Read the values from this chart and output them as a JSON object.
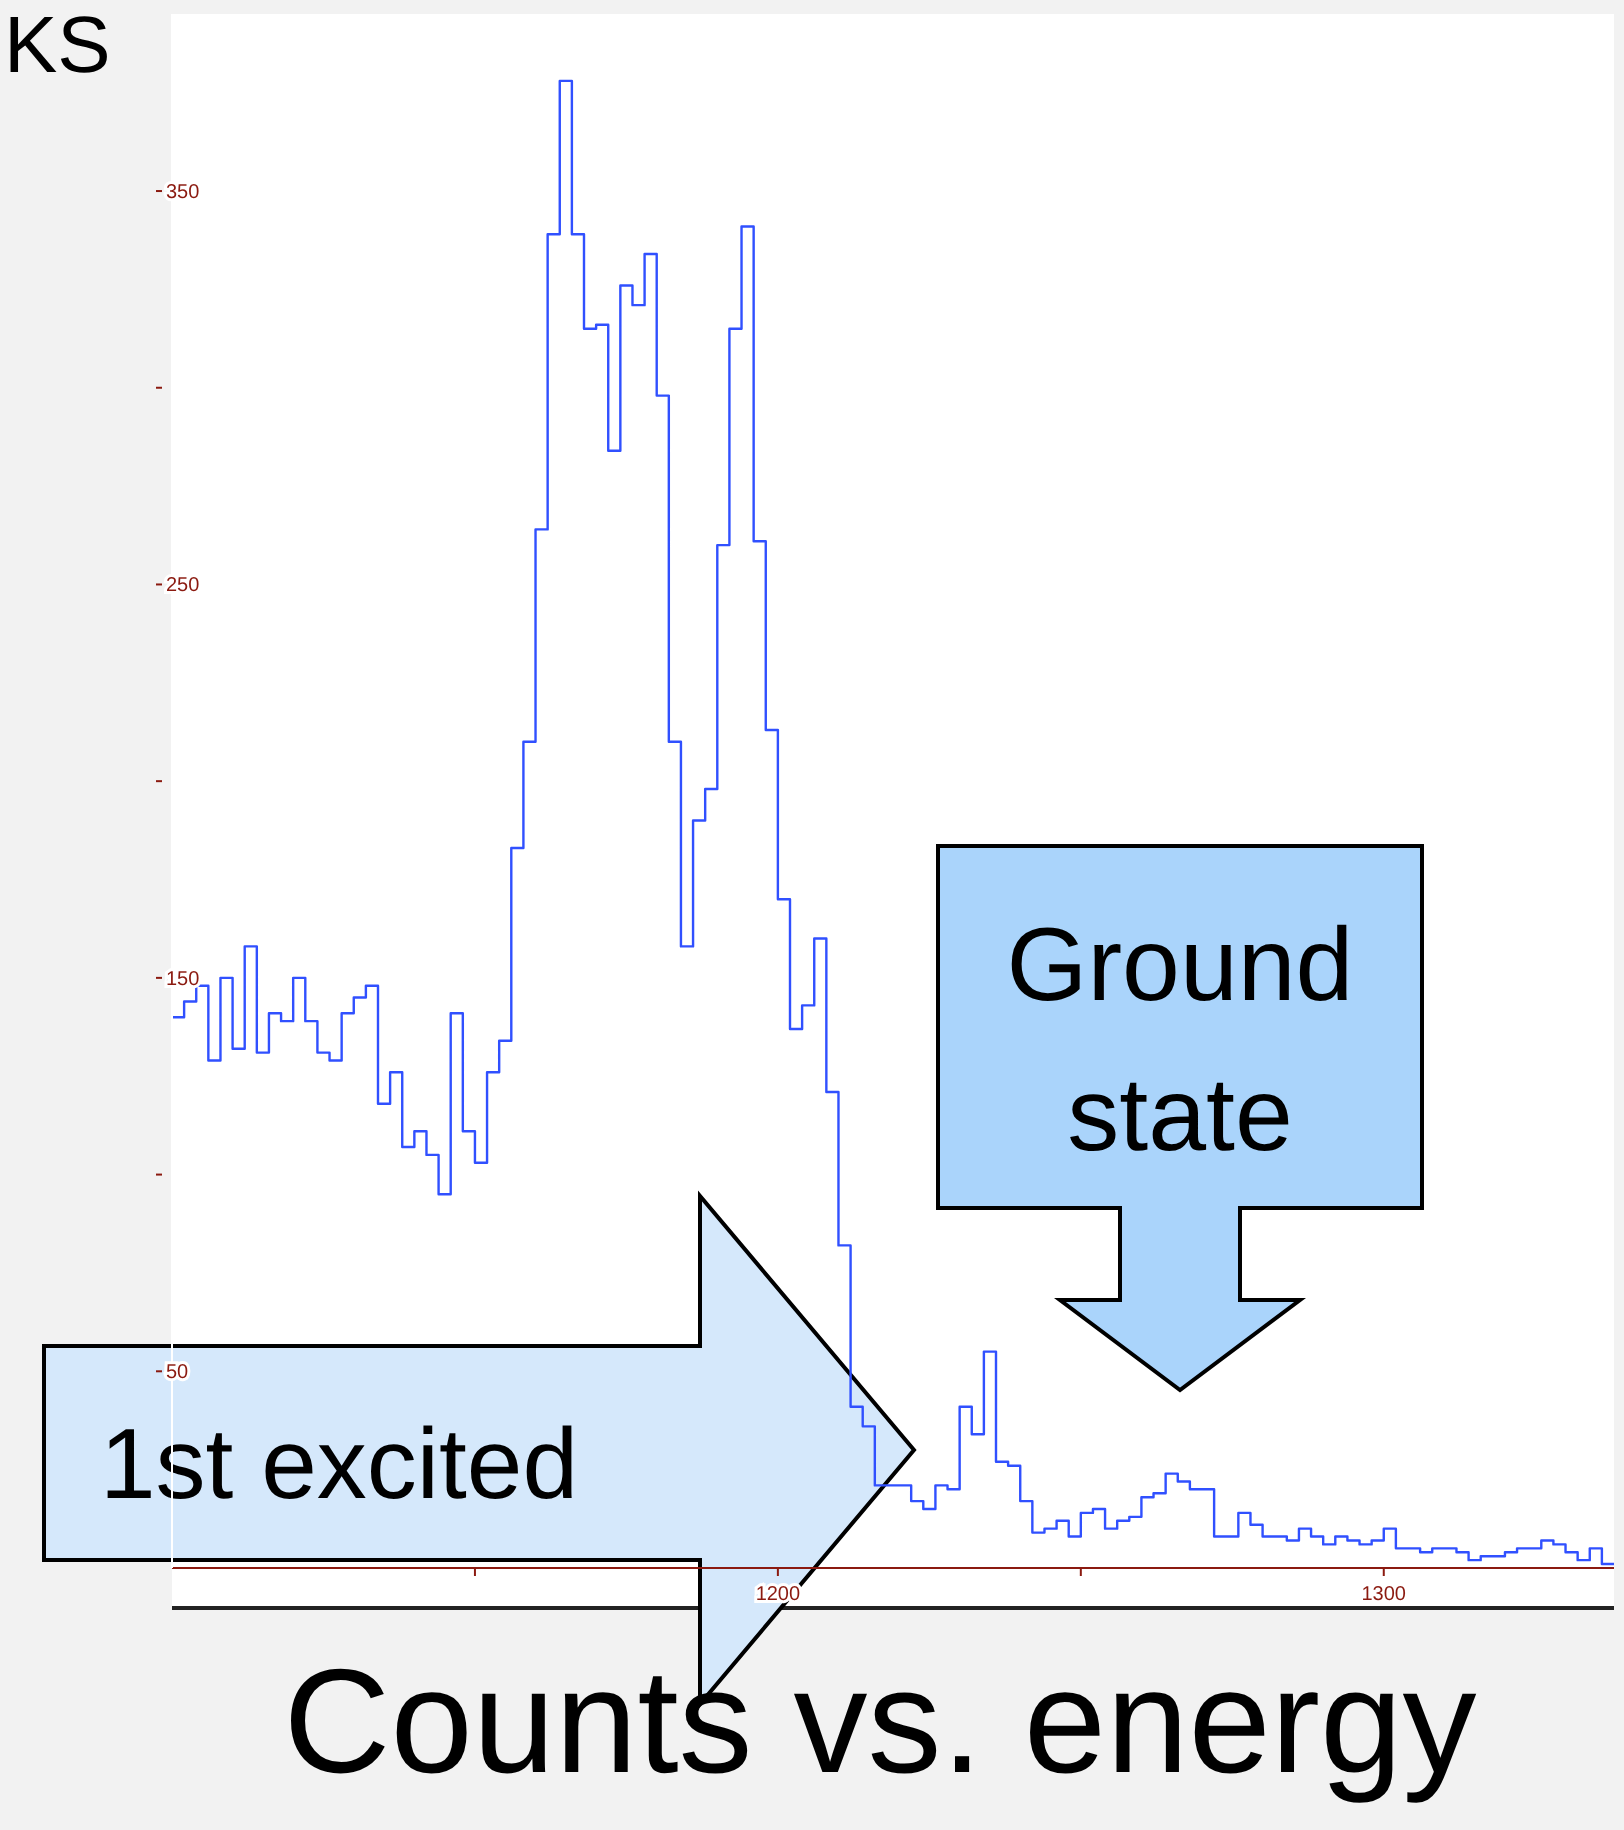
{
  "chart_data": {
    "type": "step",
    "title": "Counts vs. energy",
    "annotations": [
      "KS",
      "1st excited",
      "Ground state"
    ],
    "color": "#3050ff",
    "x": [
      1100,
      1102,
      1104,
      1106,
      1108,
      1110,
      1112,
      1114,
      1116,
      1118,
      1120,
      1122,
      1124,
      1126,
      1128,
      1130,
      1132,
      1134,
      1136,
      1138,
      1140,
      1142,
      1144,
      1146,
      1148,
      1150,
      1152,
      1154,
      1156,
      1158,
      1160,
      1162,
      1164,
      1166,
      1168,
      1170,
      1172,
      1174,
      1176,
      1178,
      1180,
      1182,
      1184,
      1186,
      1188,
      1190,
      1192,
      1194,
      1196,
      1198,
      1200,
      1202,
      1204,
      1206,
      1208,
      1210,
      1212,
      1214,
      1216,
      1218,
      1220,
      1222,
      1224,
      1226,
      1228,
      1230,
      1232,
      1234,
      1236,
      1238,
      1240,
      1242,
      1244,
      1246,
      1248,
      1250,
      1252,
      1254,
      1256,
      1258,
      1260,
      1262,
      1264,
      1266,
      1268,
      1270,
      1272,
      1274,
      1276,
      1278,
      1280,
      1282,
      1284,
      1286,
      1288,
      1290,
      1292,
      1294,
      1296,
      1298,
      1300,
      1302,
      1304,
      1306,
      1308,
      1310,
      1312,
      1314,
      1316,
      1318,
      1320,
      1322,
      1324,
      1326,
      1328,
      1330,
      1332,
      1334,
      1336,
      1338
    ],
    "values": [
      140,
      144,
      148,
      129,
      150,
      132,
      158,
      131,
      141,
      139,
      150,
      139,
      131,
      129,
      141,
      145,
      148,
      118,
      126,
      107,
      111,
      105,
      95,
      141,
      111,
      103,
      126,
      134,
      183,
      210,
      264,
      339,
      378,
      339,
      315,
      316,
      284,
      326,
      321,
      334,
      298,
      210,
      158,
      190,
      198,
      260,
      315,
      341,
      261,
      213,
      170,
      137,
      143,
      160,
      121,
      82,
      41,
      36,
      21,
      21,
      21,
      17,
      15,
      21,
      20,
      41,
      34,
      55,
      27,
      26,
      17,
      9,
      10,
      12,
      8,
      14,
      15,
      10,
      12,
      13,
      18,
      19,
      24,
      22,
      20,
      20,
      8,
      8,
      14,
      11,
      8,
      8,
      7,
      10,
      8,
      6,
      8,
      7,
      6,
      7,
      10,
      5,
      5,
      4,
      5,
      5,
      4,
      2,
      3,
      3,
      4,
      5,
      5,
      7,
      6,
      4,
      2,
      5,
      1,
      1
    ],
    "xlim": [
      1100,
      1338
    ],
    "xticks": [
      {
        "value": 1150,
        "label": null
      },
      1200,
      {
        "value": 1250,
        "label": null
      },
      1300
    ],
    "ylim": [
      0,
      395
    ],
    "yticks": [
      50,
      {
        "value": 100,
        "label": null
      },
      150,
      {
        "value": 200,
        "label": null
      },
      250,
      {
        "value": 300,
        "label": null
      },
      350
    ]
  }
}
